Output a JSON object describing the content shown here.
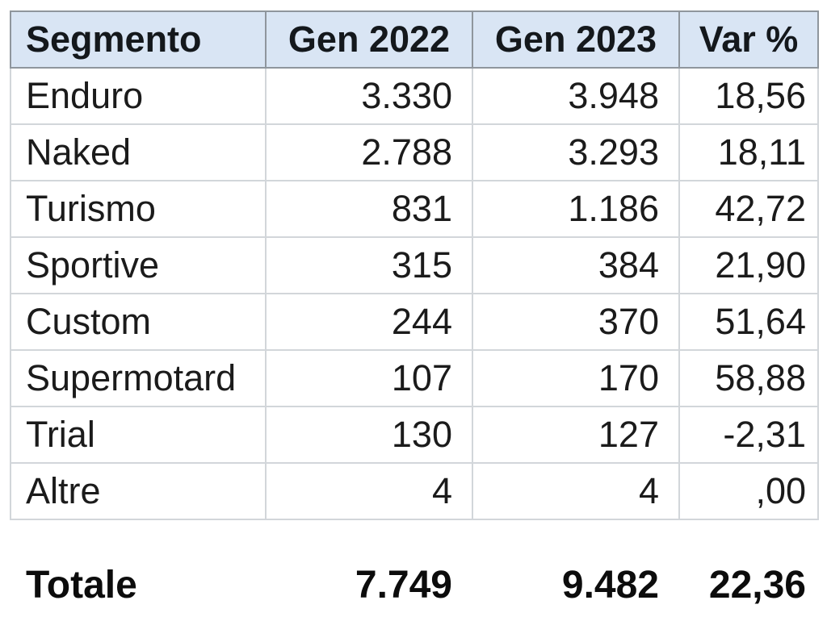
{
  "table": {
    "headers": [
      "Segmento",
      "Gen 2022",
      "Gen 2023",
      "Var %"
    ],
    "rows": [
      {
        "segmento": "Enduro",
        "gen2022": "3.330",
        "gen2023": "3.948",
        "var_pct": "18,56"
      },
      {
        "segmento": "Naked",
        "gen2022": "2.788",
        "gen2023": "3.293",
        "var_pct": "18,11"
      },
      {
        "segmento": "Turismo",
        "gen2022": "831",
        "gen2023": "1.186",
        "var_pct": "42,72"
      },
      {
        "segmento": "Sportive",
        "gen2022": "315",
        "gen2023": "384",
        "var_pct": "21,90"
      },
      {
        "segmento": "Custom",
        "gen2022": "244",
        "gen2023": "370",
        "var_pct": "51,64"
      },
      {
        "segmento": "Supermotard",
        "gen2022": "107",
        "gen2023": "170",
        "var_pct": "58,88"
      },
      {
        "segmento": "Trial",
        "gen2022": "130",
        "gen2023": "127",
        "var_pct": "-2,31"
      },
      {
        "segmento": "Altre",
        "gen2022": "4",
        "gen2023": "4",
        "var_pct": ",00"
      }
    ],
    "total": {
      "label": "Totale",
      "gen2022": "7.749",
      "gen2023": "9.482",
      "var_pct": "22,36"
    }
  },
  "colors": {
    "header_bg": "#d9e5f4",
    "header_border": "#8f969d",
    "body_border": "#d2d6da",
    "text": "#1b1b1b"
  },
  "chart_data": {
    "type": "table",
    "columns": [
      "Segmento",
      "Gen 2022",
      "Gen 2023",
      "Var %"
    ],
    "rows": [
      [
        "Enduro",
        3330,
        3948,
        18.56
      ],
      [
        "Naked",
        2788,
        3293,
        18.11
      ],
      [
        "Turismo",
        831,
        1186,
        42.72
      ],
      [
        "Sportive",
        315,
        384,
        21.9
      ],
      [
        "Custom",
        244,
        370,
        51.64
      ],
      [
        "Supermotard",
        107,
        170,
        58.88
      ],
      [
        "Trial",
        130,
        127,
        -2.31
      ],
      [
        "Altre",
        4,
        4,
        0.0
      ]
    ],
    "totals": [
      "Totale",
      7749,
      9482,
      22.36
    ]
  }
}
